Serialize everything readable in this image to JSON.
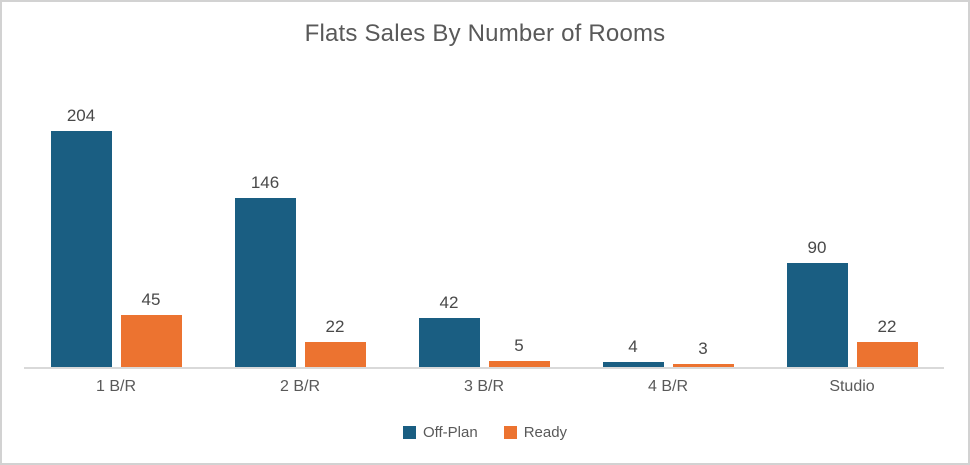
{
  "title": "Flats Sales By Number of Rooms",
  "colors": {
    "off_plan": "#1A5E82",
    "ready": "#EC7330",
    "axis_line": "#d9d9d9",
    "text_gray": "#595959",
    "frame_border": "#d2d2d2"
  },
  "chart_data": {
    "type": "bar",
    "title": "Flats Sales By Number of Rooms",
    "categories": [
      "1 B/R",
      "2 B/R",
      "3 B/R",
      "4 B/R",
      "Studio"
    ],
    "series": [
      {
        "name": "Off-Plan",
        "color": "#1A5E82",
        "values": [
          204,
          146,
          42,
          4,
          90
        ]
      },
      {
        "name": "Ready",
        "color": "#EC7330",
        "values": [
          45,
          22,
          5,
          3,
          22
        ]
      }
    ],
    "xlabel": "",
    "ylabel": "",
    "ylim": [
      0,
      210
    ],
    "grid": false,
    "y_axis_visible": false,
    "data_labels": true,
    "legend_position": "bottom"
  }
}
